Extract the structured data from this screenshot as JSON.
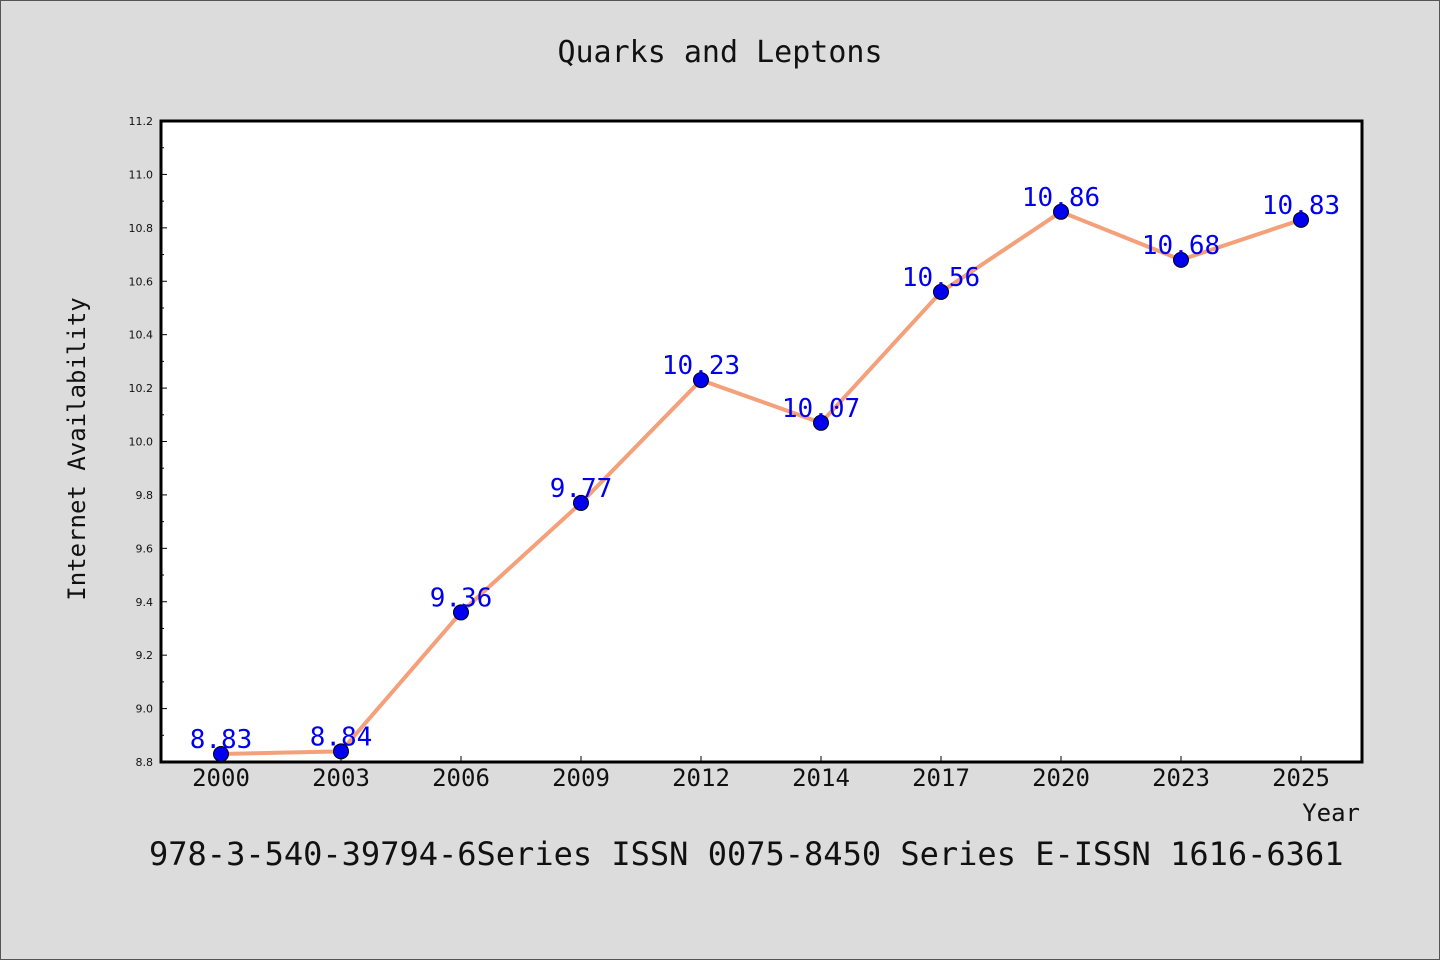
{
  "chart_data": {
    "type": "line",
    "title": "Quarks and Leptons",
    "xlabel": "Year",
    "ylabel": "Internet Availability",
    "categories": [
      "2000",
      "2003",
      "2006",
      "2009",
      "2012",
      "2014",
      "2017",
      "2020",
      "2023",
      "2025"
    ],
    "series": [
      {
        "values": [
          8.83,
          8.84,
          9.36,
          9.77,
          10.23,
          10.07,
          10.56,
          10.86,
          10.68,
          10.83
        ],
        "data_labels": [
          "8.83",
          "8.84",
          "9.36",
          "9.77",
          "10.23",
          "10.07",
          "10.56",
          "10.86",
          "10.68",
          "10.83"
        ],
        "line_color": "#f4a07a",
        "marker_color": "#0000ee"
      }
    ],
    "ylim": [
      8.8,
      11.2
    ],
    "yticks": [
      "8.8",
      "9.0",
      "9.2",
      "9.4",
      "9.6",
      "9.8",
      "10.0",
      "10.2",
      "10.4",
      "10.6",
      "10.8",
      "11.0",
      "11.2"
    ],
    "grid": false,
    "legend": "none"
  },
  "footer": "978-3-540-39794-6Series ISSN 0075-8450 Series E-ISSN 1616-6361"
}
